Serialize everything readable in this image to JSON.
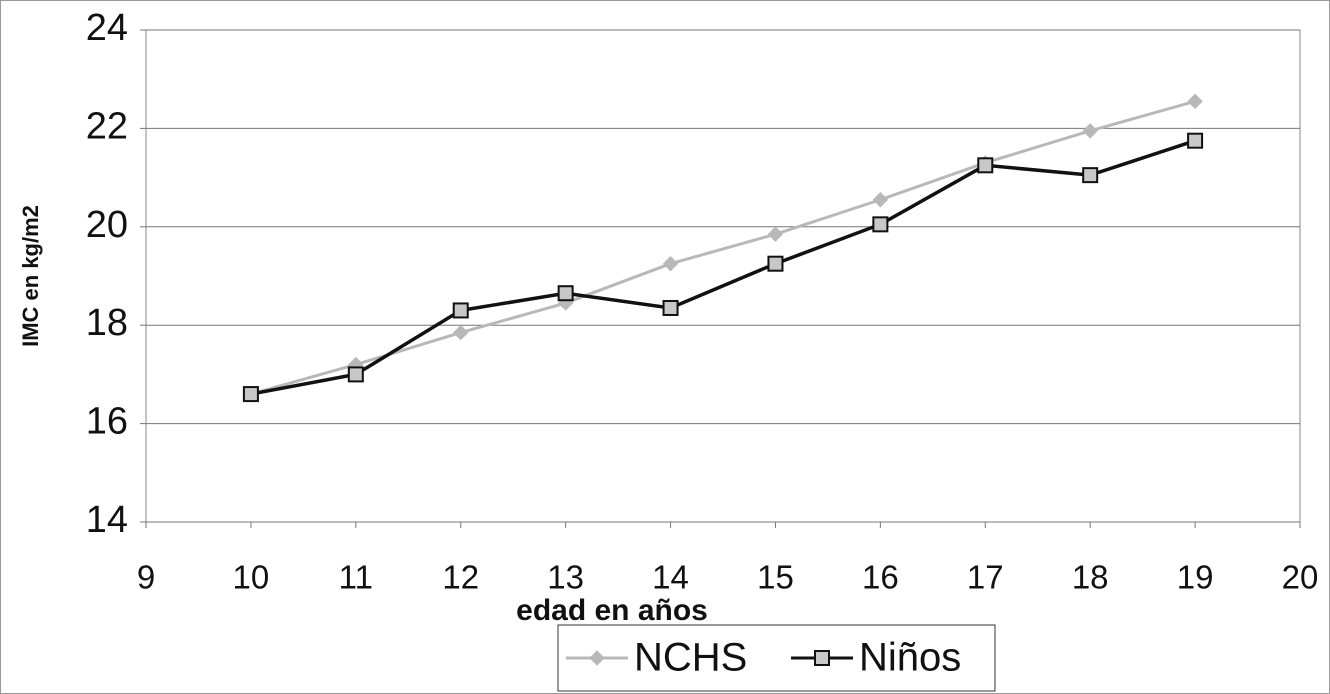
{
  "chart_data": {
    "type": "line",
    "x": [
      10,
      11,
      12,
      13,
      14,
      15,
      16,
      17,
      18,
      19
    ],
    "series": [
      {
        "name": "NCHS",
        "color": "#b8b8b8",
        "marker": "diamond",
        "values": [
          16.6,
          17.2,
          17.85,
          18.45,
          19.25,
          19.85,
          20.55,
          21.3,
          21.95,
          22.55
        ]
      },
      {
        "name": "Niños",
        "color": "#111111",
        "marker": "square",
        "values": [
          16.6,
          17.0,
          18.3,
          18.65,
          18.35,
          19.25,
          20.05,
          21.25,
          21.05,
          21.75
        ]
      }
    ],
    "xlabel": "edad en años",
    "ylabel": "IMC en kg/m2",
    "xlim": [
      9,
      20
    ],
    "xticks": [
      9,
      10,
      11,
      12,
      13,
      14,
      15,
      16,
      17,
      18,
      19,
      20
    ],
    "ylim": [
      14,
      24
    ],
    "yticks": [
      14,
      16,
      18,
      20,
      22,
      24
    ],
    "grid": true,
    "legend": "bottom"
  }
}
